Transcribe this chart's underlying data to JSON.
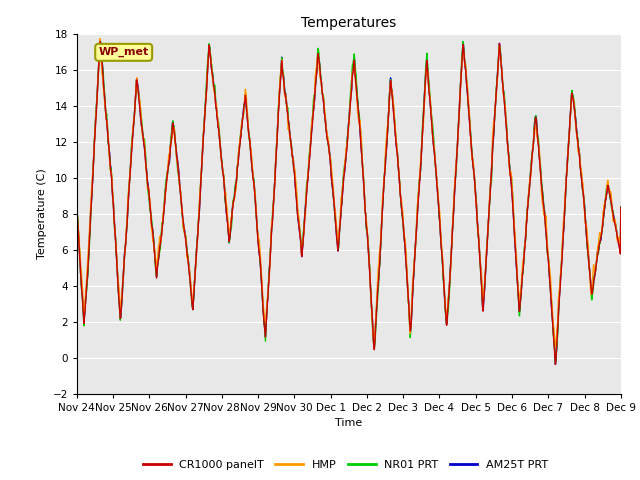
{
  "title": "Temperatures",
  "xlabel": "Time",
  "ylabel": "Temperature (C)",
  "ylim": [
    -2,
    18
  ],
  "bg_color": "#e8e8e8",
  "series": {
    "CR1000_panelT": {
      "color": "#cc0000",
      "label": "CR1000 panelT",
      "lw": 1.0
    },
    "HMP": {
      "color": "#ff9900",
      "label": "HMP",
      "lw": 1.0
    },
    "NR01_PRT": {
      "color": "#00cc00",
      "label": "NR01 PRT",
      "lw": 1.0
    },
    "AM25T_PRT": {
      "color": "#0000cc",
      "label": "AM25T PRT",
      "lw": 1.0
    }
  },
  "annotation": {
    "text": "WP_met",
    "fontsize": 8,
    "facecolor": "#ffff99",
    "edgecolor": "#999900",
    "textcolor": "#880000"
  },
  "xtick_labels": [
    "Nov 24",
    "Nov 25",
    "Nov 26",
    "Nov 27",
    "Nov 28",
    "Nov 29",
    "Nov 30",
    "Dec 1",
    "Dec 2",
    "Dec 3",
    "Dec 4",
    "Dec 5",
    "Dec 6",
    "Dec 7",
    "Dec 8",
    "Dec 9"
  ],
  "ytick_positions": [
    -2,
    0,
    2,
    4,
    6,
    8,
    10,
    12,
    14,
    16,
    18
  ],
  "grid_color": "#ffffff",
  "figsize": [
    6.4,
    4.8
  ],
  "dpi": 100,
  "peaks": [
    17.5,
    15.5,
    13.0,
    17.5,
    14.5,
    16.5,
    17.0,
    16.5,
    15.5,
    16.5,
    17.5,
    17.5,
    13.5,
    15.0,
    9.5
  ],
  "troughs": [
    1.5,
    2.0,
    4.5,
    2.5,
    6.5,
    1.0,
    5.5,
    6.0,
    0.5,
    1.5,
    1.5,
    2.5,
    2.5,
    -0.5,
    3.5
  ]
}
